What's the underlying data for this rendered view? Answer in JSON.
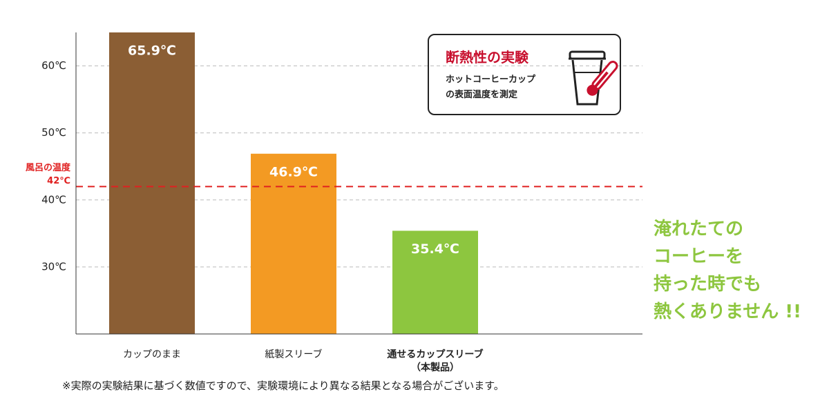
{
  "chart_data": {
    "type": "bar",
    "title": "断熱性の実験",
    "subtitle": "ホットコーヒーカップ\nの表面温度を測定",
    "categories": [
      "カップのまま",
      "紙製スリーブ",
      "通せるカップスリーブ\n（本製品）"
    ],
    "values": [
      65.9,
      46.9,
      35.4
    ],
    "value_labels": [
      "65.9℃",
      "46.9℃",
      "35.4℃"
    ],
    "colors": [
      "#8b5e34",
      "#f39a23",
      "#8dc63f"
    ],
    "ylim": [
      20,
      65
    ],
    "yticks": [
      {
        "value": 30,
        "label": "30℃"
      },
      {
        "value": 40,
        "label": "40℃"
      },
      {
        "value": 50,
        "label": "50℃"
      },
      {
        "value": 60,
        "label": "60℃"
      }
    ],
    "grid": true,
    "reference_line": {
      "value": 42,
      "label": "風呂の温度",
      "value_label": "42℃",
      "color": "#e02020"
    },
    "message": "淹れたての\nコーヒーを\n持った時でも\n熱くありません !!",
    "note": "※実際の実験結果に基づく数値ですので、実験環境により異なる結果となる場合がございます。"
  }
}
